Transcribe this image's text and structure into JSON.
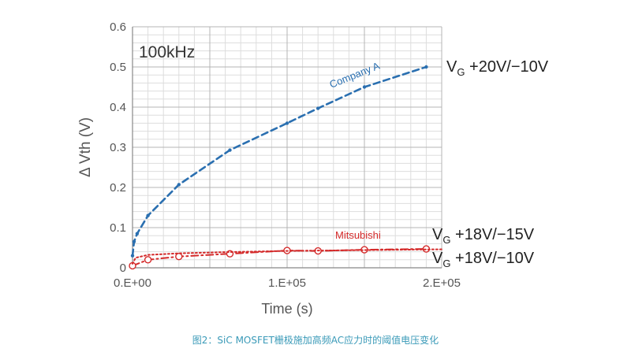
{
  "chart_data": {
    "type": "line",
    "xlabel": "Time (s)",
    "ylabel": "Δ Vth (V)",
    "xlim": [
      0,
      200000
    ],
    "ylim": [
      0,
      0.6
    ],
    "x_ticks": [
      0,
      100000,
      200000
    ],
    "x_tick_labels": [
      "0.E+00",
      "1.E+05",
      "2.E+05"
    ],
    "y_ticks": [
      0,
      0.1,
      0.2,
      0.3,
      0.4,
      0.5,
      0.6
    ],
    "y_tick_labels": [
      "0",
      "0.1",
      "0.2",
      "0.3",
      "0.4",
      "0.5",
      "0.6"
    ],
    "grid": true,
    "annotations": {
      "frequency": "100kHz"
    },
    "series": [
      {
        "name": "Company A",
        "color": "#2a6fb0",
        "style": "dashed",
        "marker": "star",
        "condition": {
          "main": "V",
          "sub": "G",
          "rest": " +20V/−10V"
        },
        "x": [
          0,
          1000,
          3000,
          10000,
          30000,
          63000,
          100000,
          120000,
          150000,
          190000
        ],
        "y": [
          0.03,
          0.065,
          0.085,
          0.13,
          0.207,
          0.293,
          0.36,
          0.397,
          0.45,
          0.5
        ]
      },
      {
        "name": "Mitsubishi",
        "color": "#d42a2a",
        "style": "dash-dot",
        "marker": "open-circle",
        "condition": {
          "main": "V",
          "sub": "G",
          "rest": " +18V/−15V"
        },
        "x": [
          0,
          10000,
          30000,
          63000,
          100000,
          120000,
          150000,
          190000
        ],
        "y": [
          0.005,
          0.02,
          0.028,
          0.035,
          0.043,
          0.042,
          0.045,
          0.047
        ]
      },
      {
        "name": "",
        "color": "#d42a2a",
        "style": "dotted",
        "marker": "none",
        "condition": {
          "main": "V",
          "sub": "G",
          "rest": " +18V/−10V"
        },
        "x": [
          0,
          2000,
          10000,
          30000,
          60000,
          100000,
          150000,
          200000
        ],
        "y": [
          0.01,
          0.025,
          0.032,
          0.036,
          0.039,
          0.042,
          0.044,
          0.046
        ]
      }
    ]
  },
  "caption": "图2：SiC MOSFET栅极施加高频AC应力时的阈值电压变化"
}
